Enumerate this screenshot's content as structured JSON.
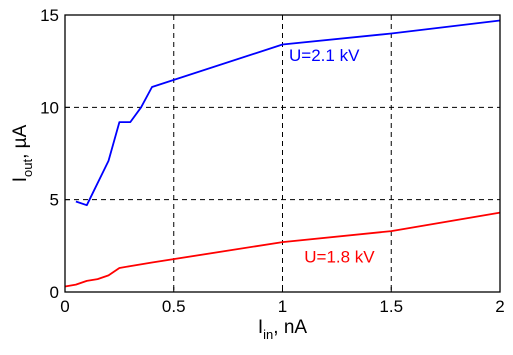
{
  "chart_data": {
    "type": "line",
    "title": "",
    "xlabel": {
      "main": "I",
      "sub": "in",
      "unit": ", nA"
    },
    "ylabel": {
      "main": "I",
      "sub": "out",
      "unit": ", µA"
    },
    "xlim": [
      0,
      2
    ],
    "ylim": [
      0,
      15
    ],
    "x_ticks": [
      0,
      0.5,
      1,
      1.5,
      2
    ],
    "x_tick_labels": [
      "0",
      "0.5",
      "1",
      "1.5",
      "2"
    ],
    "y_ticks": [
      0,
      5,
      10,
      15
    ],
    "y_tick_labels": [
      "0",
      "5",
      "10",
      "15"
    ],
    "grid": true,
    "series": [
      {
        "name": "U=2.1 kV",
        "color": "#0000ff",
        "x": [
          0.05,
          0.1,
          0.2,
          0.25,
          0.3,
          0.35,
          0.4,
          1.0,
          1.5,
          2.0
        ],
        "y": [
          4.9,
          4.7,
          7.1,
          9.2,
          9.2,
          10.0,
          11.1,
          13.4,
          14.0,
          14.7
        ]
      },
      {
        "name": "U=1.8 kV",
        "color": "#ff0000",
        "x": [
          0.0,
          0.05,
          0.1,
          0.15,
          0.2,
          0.25,
          0.3,
          0.4,
          1.0,
          1.5,
          2.0
        ],
        "y": [
          0.3,
          0.4,
          0.6,
          0.7,
          0.9,
          1.3,
          1.4,
          1.6,
          2.7,
          3.3,
          4.3
        ]
      }
    ],
    "annotations": [
      {
        "text": "U=2.1 kV",
        "x": 1.03,
        "y": 12.5,
        "color": "#0000ff"
      },
      {
        "text": "U=1.8 kV",
        "x": 1.1,
        "y": 1.6,
        "color": "#ff0000"
      }
    ]
  }
}
